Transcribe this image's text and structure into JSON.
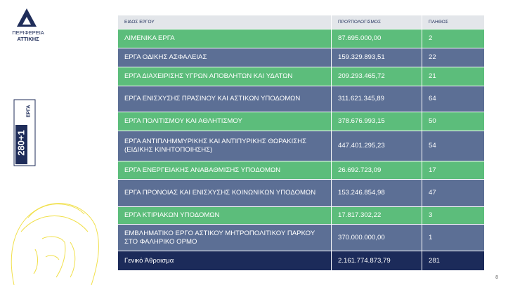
{
  "logo": {
    "line1": "ΠΕΡΙΦΕΡΕΙΑ",
    "line2": "ΑΤΤΙΚΗΣ"
  },
  "badge": {
    "number": "280+1",
    "label": "ΕΡΓΑ"
  },
  "table": {
    "header": [
      "ΕΙΔΟΣ ΕΡΓΟΥ",
      "ΠΡΟΫΠΟΛΟΓΙΣΜΟΣ",
      "ΠΛΗΘΟΣ"
    ],
    "rows": [
      [
        "ΛΙΜΕΝΙΚΑ ΕΡΓΑ",
        "87.695.000,00",
        "2"
      ],
      [
        "ΕΡΓΑ ΟΔΙΚΗΣ ΑΣΦΑΛΕΙΑΣ",
        "159.329.893,51",
        "22"
      ],
      [
        "ΕΡΓΑ ΔΙΑΧΕΙΡΙΣΗΣ ΥΓΡΩΝ ΑΠΟΒΛΗΤΩΝ ΚΑΙ ΥΔΑΤΩΝ",
        "209.293.465,72",
        "21"
      ],
      [
        "ΕΡΓΑ ΕΝΙΣΧΥΣΗΣ ΠΡΑΣΙΝΟΥ ΚΑΙ ΑΣΤΙΚΩΝ ΥΠΟΔΟΜΩΝ",
        "311.621.345,89",
        "64"
      ],
      [
        "ΕΡΓΑ ΠΟΛΙΤΙΣΜΟΥ ΚΑΙ ΑΘΛΗΤΙΣΜΟΥ",
        "378.676.993,15",
        "50"
      ],
      [
        "ΕΡΓΑ ΑΝΤΙΠΛΗΜΜΥΡΙΚΗΣ ΚΑΙ ΑΝΤΙΠΥΡΙΚΗΣ ΘΩΡΑΚΙΣΗΣ (ΕΙΔΙΚΗΣ ΚΙΝΗΤΟΠΟΙΗΣΗΣ)",
        "447.401.295,23",
        "54"
      ],
      [
        "ΕΡΓΑ ΕΝΕΡΓΕΙΑΚΗΣ ΑΝΑΒΑΘΜΙΣΗΣ ΥΠΟΔΟΜΩΝ",
        "26.692.723,09",
        "17"
      ],
      [
        "ΕΡΓΑ ΠΡΟΝΟΙΑΣ ΚΑΙ ΕΝΙΣΧΥΣΗΣ ΚΟΙΝΩΝΙΚΩΝ ΥΠΟΔΟΜΩΝ",
        "153.246.854,98",
        "47"
      ],
      [
        "ΕΡΓΑ ΚΤΙΡΙΑΚΩΝ ΥΠΟΔΟΜΩΝ",
        "17.817.302,22",
        "3"
      ],
      [
        "ΕΜΒΛΗΜΑΤΙΚΟ ΕΡΓΟ ΑΣΤΙΚΟΥ ΜΗΤΡΟΠΟΛΙΤΙΚΟΥ ΠΑΡΚΟΥ ΣΤΟ ΦΑΛΗΡΙΚΟ ΟΡΜΟ",
        "370.000.000,00",
        "1"
      ]
    ],
    "total": [
      "Γενικό Άθροισμα",
      "2.161.774.873,79",
      "281"
    ]
  },
  "page_number": "8"
}
